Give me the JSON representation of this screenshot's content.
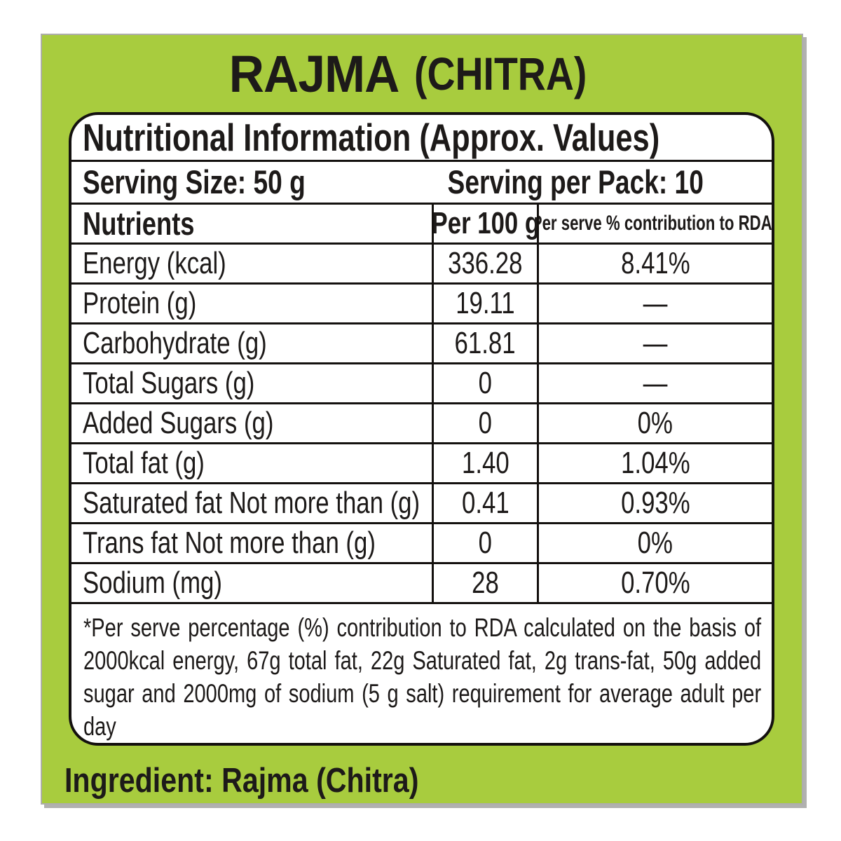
{
  "title": {
    "main": "RAJMA",
    "sub": "(CHITRA)"
  },
  "nutrition": {
    "header": "Nutritional Information (Approx. Values)",
    "serving_size": "Serving Size: 50 g",
    "serving_per_pack": "Serving per Pack: 10",
    "table": {
      "columns": [
        "Nutrients",
        "Per 100 g",
        "Per serve % contribution to RDA*"
      ],
      "rows": [
        {
          "name": "Energy (kcal)",
          "per_100g": "336.28",
          "rda": "8.41%"
        },
        {
          "name": "Protein (g)",
          "per_100g": "19.11",
          "rda": "—"
        },
        {
          "name": "Carbohydrate (g)",
          "per_100g": "61.81",
          "rda": "—"
        },
        {
          "name": "Total Sugars (g)",
          "per_100g": "0",
          "rda": "—"
        },
        {
          "name": "Added Sugars (g)",
          "per_100g": "0",
          "rda": "0%"
        },
        {
          "name": "Total fat (g)",
          "per_100g": "1.40",
          "rda": "1.04%"
        },
        {
          "name": "Saturated fat Not more than (g)",
          "per_100g": "0.41",
          "rda": "0.93%"
        },
        {
          "name": "Trans fat Not more than (g)",
          "per_100g": "0",
          "rda": "0%"
        },
        {
          "name": "Sodium (mg)",
          "per_100g": "28",
          "rda": "0.70%"
        }
      ]
    },
    "footnote_lines": [
      "*Per serve percentage (%) contribution to RDA calculated on the basis of",
      "2000kcal energy, 67g total fat, 22g Saturated fat, 2g trans-fat, 50g added",
      "sugar and 2000mg of sodium (5 g salt) requirement for average adult per day"
    ]
  },
  "ingredient": "Ingredient: Rajma (Chitra)",
  "colors": {
    "label_green": "#a8cc3e",
    "edge_gray": "#b1b1af",
    "text_black": "#1d1a19"
  }
}
